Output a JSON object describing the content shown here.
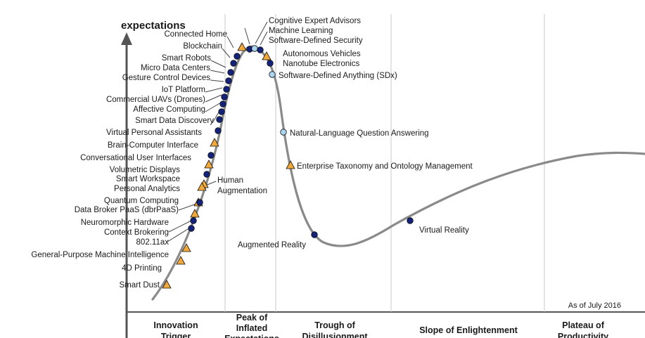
{
  "chart_data": {
    "type": "scatter",
    "ylabel": "expectations",
    "as_of": "As of July 2016",
    "phases": [
      {
        "lines": [
          "Innovation",
          "Trigger"
        ]
      },
      {
        "lines": [
          "Peak of",
          "Inflated",
          "Expectations"
        ]
      },
      {
        "lines": [
          "Trough of",
          "Disillusionment"
        ]
      },
      {
        "lines": [
          "Slope of Enlightenment"
        ]
      },
      {
        "lines": [
          "Plateau of",
          "Productivity"
        ]
      }
    ],
    "legend_markers": {
      "navy": "#13237a",
      "light": "#a9d4ee",
      "triangle": "#f2a93b"
    },
    "technologies": [
      {
        "name": "Smart Dust",
        "marker": "triangle"
      },
      {
        "name": "4D Printing",
        "marker": "triangle"
      },
      {
        "name": "General-Purpose Machine Intelligence",
        "marker": "triangle"
      },
      {
        "name": "802.11ax",
        "marker": "navy"
      },
      {
        "name": "Context Brokering",
        "marker": "navy"
      },
      {
        "name": "Neuromorphic Hardware",
        "marker": "triangle"
      },
      {
        "name": "Data Broker PaaS (dbrPaaS)",
        "marker": "triangle"
      },
      {
        "name": "Quantum Computing",
        "marker": "navy"
      },
      {
        "name": "Human Augmentation",
        "marker": "triangle"
      },
      {
        "name": "Personal Analytics",
        "marker": "triangle"
      },
      {
        "name": "Smart Workspace",
        "marker": "navy"
      },
      {
        "name": "Volumetric Displays",
        "marker": "triangle"
      },
      {
        "name": "Conversational User Interfaces",
        "marker": "navy"
      },
      {
        "name": "Brain-Computer Interface",
        "marker": "triangle"
      },
      {
        "name": "Virtual Personal Assistants",
        "marker": "navy"
      },
      {
        "name": "Smart Data Discovery",
        "marker": "navy"
      },
      {
        "name": "Affective Computing",
        "marker": "navy"
      },
      {
        "name": "Commercial UAVs (Drones)",
        "marker": "navy"
      },
      {
        "name": "IoT Platform",
        "marker": "navy"
      },
      {
        "name": "Gesture Control Devices",
        "marker": "navy"
      },
      {
        "name": "Micro Data Centers",
        "marker": "navy"
      },
      {
        "name": "Smart Robots",
        "marker": "navy"
      },
      {
        "name": "Blockchain",
        "marker": "navy"
      },
      {
        "name": "Connected Home",
        "marker": "navy"
      },
      {
        "name": "Cognitive Expert Advisors",
        "marker": "light"
      },
      {
        "name": "Machine Learning",
        "marker": "light"
      },
      {
        "name": "Software-Defined Security",
        "marker": "navy"
      },
      {
        "name": "Autonomous Vehicles",
        "marker": "triangle"
      },
      {
        "name": "Nanotube Electronics",
        "marker": "navy"
      },
      {
        "name": "Software-Defined Anything (SDx)",
        "marker": "light"
      },
      {
        "name": "Natural-Language Question Answering",
        "marker": "light"
      },
      {
        "name": "Enterprise Taxonomy and Ontology Management",
        "marker": "triangle"
      },
      {
        "name": "Augmented Reality",
        "marker": "navy"
      },
      {
        "name": "Virtual Reality",
        "marker": "navy"
      }
    ]
  }
}
